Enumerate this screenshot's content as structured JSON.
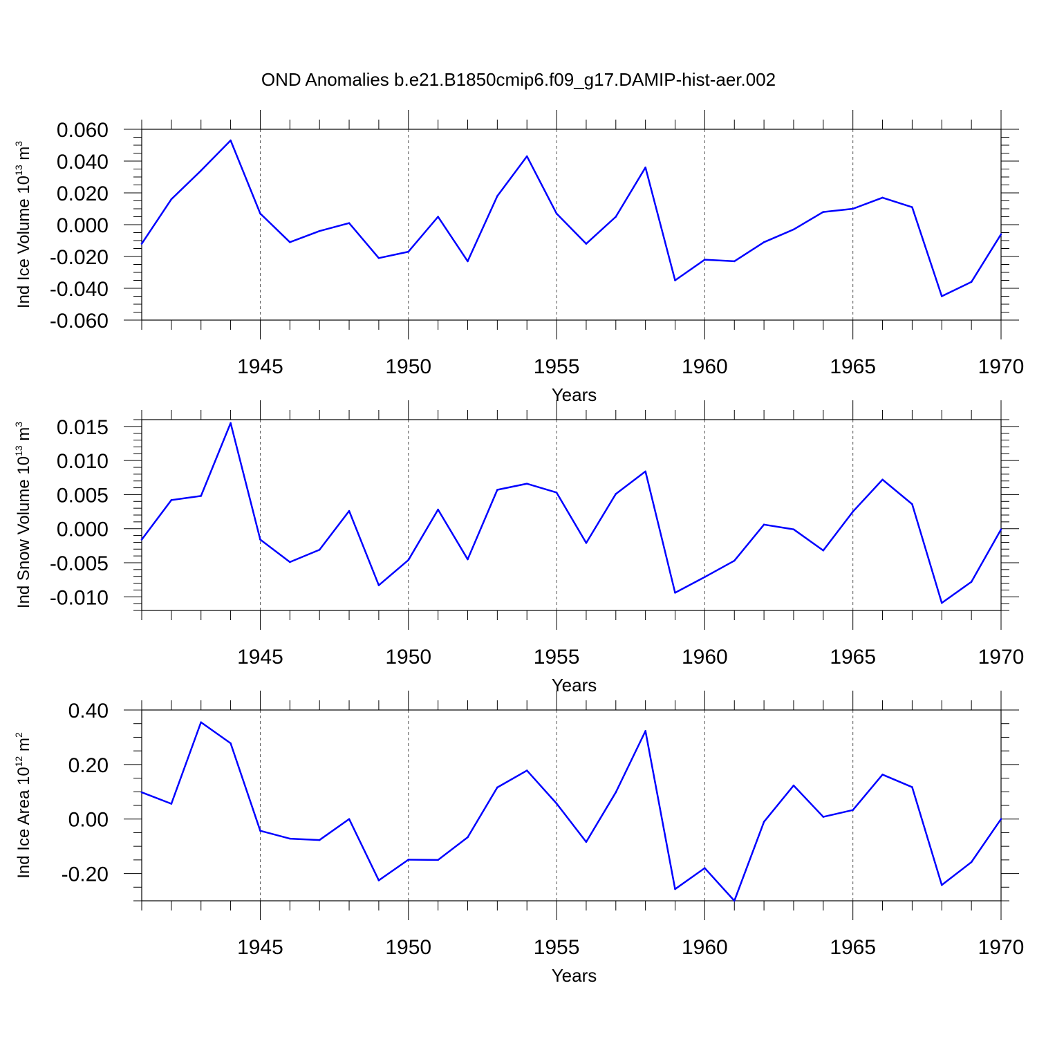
{
  "title": "OND Anomalies b.e21.B1850cmip6.f09_g17.DAMIP-hist-aer.002",
  "chart_data": [
    {
      "type": "line",
      "ylabel_pre": "Ind Ice Volume 10",
      "ylabel_sup1": "13",
      "ylabel_mid": " m",
      "ylabel_sup2": "3",
      "xlabel": "Years",
      "xlim": [
        1941,
        1970
      ],
      "ylim": [
        -0.06,
        0.06
      ],
      "yticks": [
        -0.06,
        -0.04,
        -0.02,
        0.0,
        0.02,
        0.04,
        0.06
      ],
      "ytick_labels": [
        "-0.060",
        "-0.040",
        "-0.020",
        "0.000",
        "0.020",
        "0.040",
        "0.060"
      ],
      "yminor": 0.005,
      "xticks": [
        1945,
        1950,
        1955,
        1960,
        1965,
        1970
      ],
      "xtick_labels": [
        "1945",
        "1950",
        "1955",
        "1960",
        "1965",
        "1970"
      ],
      "line_color": "#0000ff",
      "x": [
        1941,
        1942,
        1943,
        1944,
        1945,
        1946,
        1947,
        1948,
        1949,
        1950,
        1951,
        1952,
        1953,
        1954,
        1955,
        1956,
        1957,
        1958,
        1959,
        1960,
        1961,
        1962,
        1963,
        1964,
        1965,
        1966,
        1967,
        1968,
        1969,
        1970
      ],
      "values": [
        -0.012,
        0.016,
        0.034,
        0.053,
        0.007,
        -0.011,
        -0.004,
        0.001,
        -0.021,
        -0.017,
        0.005,
        -0.023,
        0.018,
        0.043,
        0.007,
        -0.012,
        0.005,
        0.036,
        -0.035,
        -0.022,
        -0.023,
        -0.011,
        -0.003,
        0.008,
        0.01,
        0.017,
        0.011,
        -0.045,
        -0.036,
        -0.006
      ]
    },
    {
      "type": "line",
      "ylabel_pre": "Ind Snow Volume 10",
      "ylabel_sup1": "13",
      "ylabel_mid": " m",
      "ylabel_sup2": "3",
      "xlabel": "Years",
      "xlim": [
        1941,
        1970
      ],
      "ylim": [
        -0.012,
        0.016
      ],
      "yticks": [
        -0.01,
        -0.005,
        0.0,
        0.005,
        0.01,
        0.015
      ],
      "ytick_labels": [
        "-0.010",
        "-0.005",
        "0.000",
        "0.005",
        "0.010",
        "0.015"
      ],
      "yminor": 0.001,
      "xticks": [
        1945,
        1950,
        1955,
        1960,
        1965,
        1970
      ],
      "xtick_labels": [
        "1945",
        "1950",
        "1955",
        "1960",
        "1965",
        "1970"
      ],
      "line_color": "#0000ff",
      "x": [
        1941,
        1942,
        1943,
        1944,
        1945,
        1946,
        1947,
        1948,
        1949,
        1950,
        1951,
        1952,
        1953,
        1954,
        1955,
        1956,
        1957,
        1958,
        1959,
        1960,
        1961,
        1962,
        1963,
        1964,
        1965,
        1966,
        1967,
        1968,
        1969,
        1970
      ],
      "values": [
        -0.0016,
        0.0042,
        0.0048,
        0.0155,
        -0.0016,
        -0.0049,
        -0.0031,
        0.0026,
        -0.0083,
        -0.0046,
        0.0028,
        -0.0045,
        0.0057,
        0.0066,
        0.0053,
        -0.0021,
        0.0051,
        0.0084,
        -0.0094,
        -0.0071,
        -0.0047,
        0.0006,
        -0.0001,
        -0.0032,
        0.0025,
        0.0072,
        0.0036,
        -0.0109,
        -0.0078,
        -0.0001
      ]
    },
    {
      "type": "line",
      "ylabel_pre": "Ind Ice Area 10",
      "ylabel_sup1": "12",
      "ylabel_mid": " m",
      "ylabel_sup2": "2",
      "xlabel": "Years",
      "xlim": [
        1941,
        1970
      ],
      "ylim": [
        -0.3,
        0.4
      ],
      "yticks": [
        -0.2,
        0.0,
        0.2,
        0.4
      ],
      "ytick_labels": [
        "-0.20",
        "0.00",
        "0.20",
        "0.40"
      ],
      "yminor": 0.05,
      "xticks": [
        1945,
        1950,
        1955,
        1960,
        1965,
        1970
      ],
      "xtick_labels": [
        "1945",
        "1950",
        "1955",
        "1960",
        "1965",
        "1970"
      ],
      "line_color": "#0000ff",
      "x": [
        1941,
        1942,
        1943,
        1944,
        1945,
        1946,
        1947,
        1948,
        1949,
        1950,
        1951,
        1952,
        1953,
        1954,
        1955,
        1956,
        1957,
        1958,
        1959,
        1960,
        1961,
        1962,
        1963,
        1964,
        1965,
        1966,
        1967,
        1968,
        1969,
        1970
      ],
      "values": [
        0.098,
        0.056,
        0.355,
        0.278,
        -0.043,
        -0.072,
        -0.077,
        0.0,
        -0.225,
        -0.149,
        -0.15,
        -0.067,
        0.116,
        0.178,
        0.057,
        -0.084,
        0.098,
        0.323,
        -0.257,
        -0.18,
        -0.3,
        -0.01,
        0.123,
        0.008,
        0.033,
        0.163,
        0.117,
        -0.242,
        -0.158,
        0.0
      ]
    }
  ]
}
